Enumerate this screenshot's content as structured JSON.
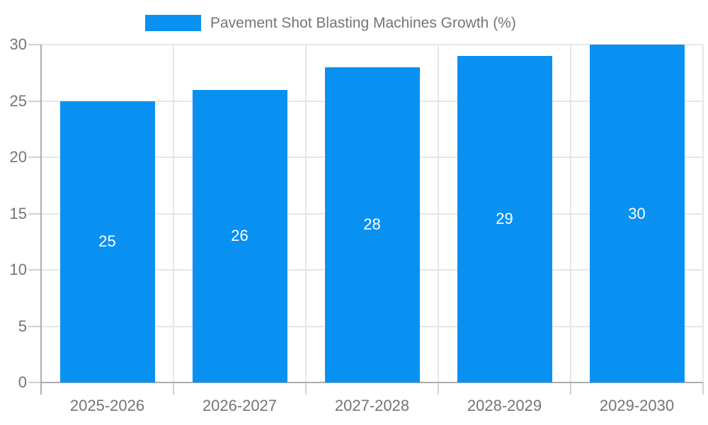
{
  "chart_data": {
    "type": "bar",
    "title": "Pavement Shot Blasting Machines Growth (%)",
    "categories": [
      "2025-2026",
      "2026-2027",
      "2027-2028",
      "2028-2029",
      "2029-2030"
    ],
    "values": [
      25,
      26,
      28,
      29,
      30
    ],
    "series": [
      {
        "name": "Pavement Shot Blasting Machines Growth (%)",
        "values": [
          25,
          26,
          28,
          29,
          30
        ]
      }
    ],
    "xlabel": "",
    "ylabel": "",
    "ylim": [
      0,
      30
    ],
    "yticks": [
      0,
      5,
      10,
      15,
      20,
      25,
      30
    ],
    "grid": "horizontal and vertical category boundaries",
    "legend_position": "top",
    "bar_labels": [
      "25",
      "26",
      "28",
      "29",
      "30"
    ],
    "colors": {
      "bar": "#0991f2",
      "bar_label_text": "#ffffff",
      "axis_text": "#757575",
      "axis_line": "#adadad",
      "gridline": "#e7e7e7",
      "tick_mark": "#d2d2d2",
      "background": "#ffffff"
    }
  }
}
